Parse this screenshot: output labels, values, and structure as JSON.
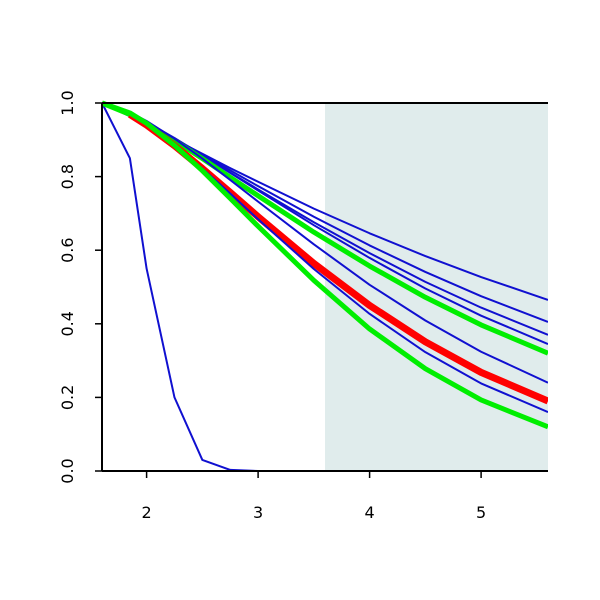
{
  "chart_data": {
    "type": "line",
    "x": [
      1.6,
      1.85,
      2.0,
      2.25,
      2.5,
      2.75,
      3.0,
      3.5,
      4.0,
      4.5,
      5.0,
      5.6
    ],
    "series": [
      {
        "color": "#1010d0",
        "line_width": 2,
        "values": [
          1,
          0.85,
          0.55,
          0.2,
          0.03,
          0.003,
          0,
          0,
          0,
          0,
          0,
          0
        ]
      },
      {
        "color": "#1010d0",
        "line_width": 2,
        "values": [
          1,
          0.964,
          0.941,
          0.901,
          0.862,
          0.823,
          0.786,
          0.713,
          0.646,
          0.584,
          0.527,
          0.465
        ]
      },
      {
        "color": "#1010d0",
        "line_width": 2,
        "values": [
          1,
          0.968,
          0.945,
          0.903,
          0.86,
          0.817,
          0.774,
          0.691,
          0.613,
          0.541,
          0.475,
          0.405
        ]
      },
      {
        "color": "#1010d0",
        "line_width": 2,
        "values": [
          1,
          0.969,
          0.946,
          0.903,
          0.857,
          0.811,
          0.765,
          0.676,
          0.592,
          0.514,
          0.444,
          0.37
        ]
      },
      {
        "color": "#1010d0",
        "line_width": 2,
        "values": [
          1,
          0.972,
          0.948,
          0.905,
          0.858,
          0.81,
          0.762,
          0.668,
          0.579,
          0.496,
          0.422,
          0.345
        ]
      },
      {
        "color": "#00ee00",
        "line_width": 5,
        "values": [
          1,
          0.969,
          0.944,
          0.898,
          0.849,
          0.798,
          0.748,
          0.649,
          0.557,
          0.472,
          0.397,
          0.32
        ]
      },
      {
        "color": "#1010d0",
        "line_width": 2,
        "values": [
          1,
          0.975,
          0.951,
          0.903,
          0.849,
          0.791,
          0.732,
          0.616,
          0.506,
          0.409,
          0.324,
          0.24
        ]
      },
      {
        "color": "#ff0000",
        "line_width": 7,
        "values": [
          null,
          0.969,
          0.94,
          0.884,
          0.822,
          0.757,
          0.691,
          0.564,
          0.45,
          0.351,
          0.268,
          0.19
        ]
      },
      {
        "color": "#1010d0",
        "line_width": 2,
        "values": [
          1,
          0.972,
          0.944,
          0.887,
          0.822,
          0.754,
          0.684,
          0.549,
          0.427,
          0.323,
          0.238,
          0.16
        ]
      },
      {
        "color": "#00ee00",
        "line_width": 5,
        "values": [
          1,
          0.973,
          0.945,
          0.885,
          0.816,
          0.741,
          0.665,
          0.518,
          0.386,
          0.278,
          0.193,
          0.12
        ]
      }
    ],
    "shade": [
      3.6,
      5.6
    ],
    "shade_color": "#e0ecec",
    "xlim": [
      1.6,
      5.6
    ],
    "xticks": [
      2,
      3,
      4,
      5
    ],
    "ylim": [
      0,
      1
    ],
    "yticks": [
      {
        "value": 0,
        "label": "0.0"
      },
      {
        "value": 0.2,
        "label": "0.2"
      },
      {
        "value": 0.4,
        "label": "0.4"
      },
      {
        "value": 0.6,
        "label": "0.6"
      },
      {
        "value": 0.8,
        "label": "0.8"
      },
      {
        "value": 1,
        "label": "1.0"
      }
    ]
  }
}
